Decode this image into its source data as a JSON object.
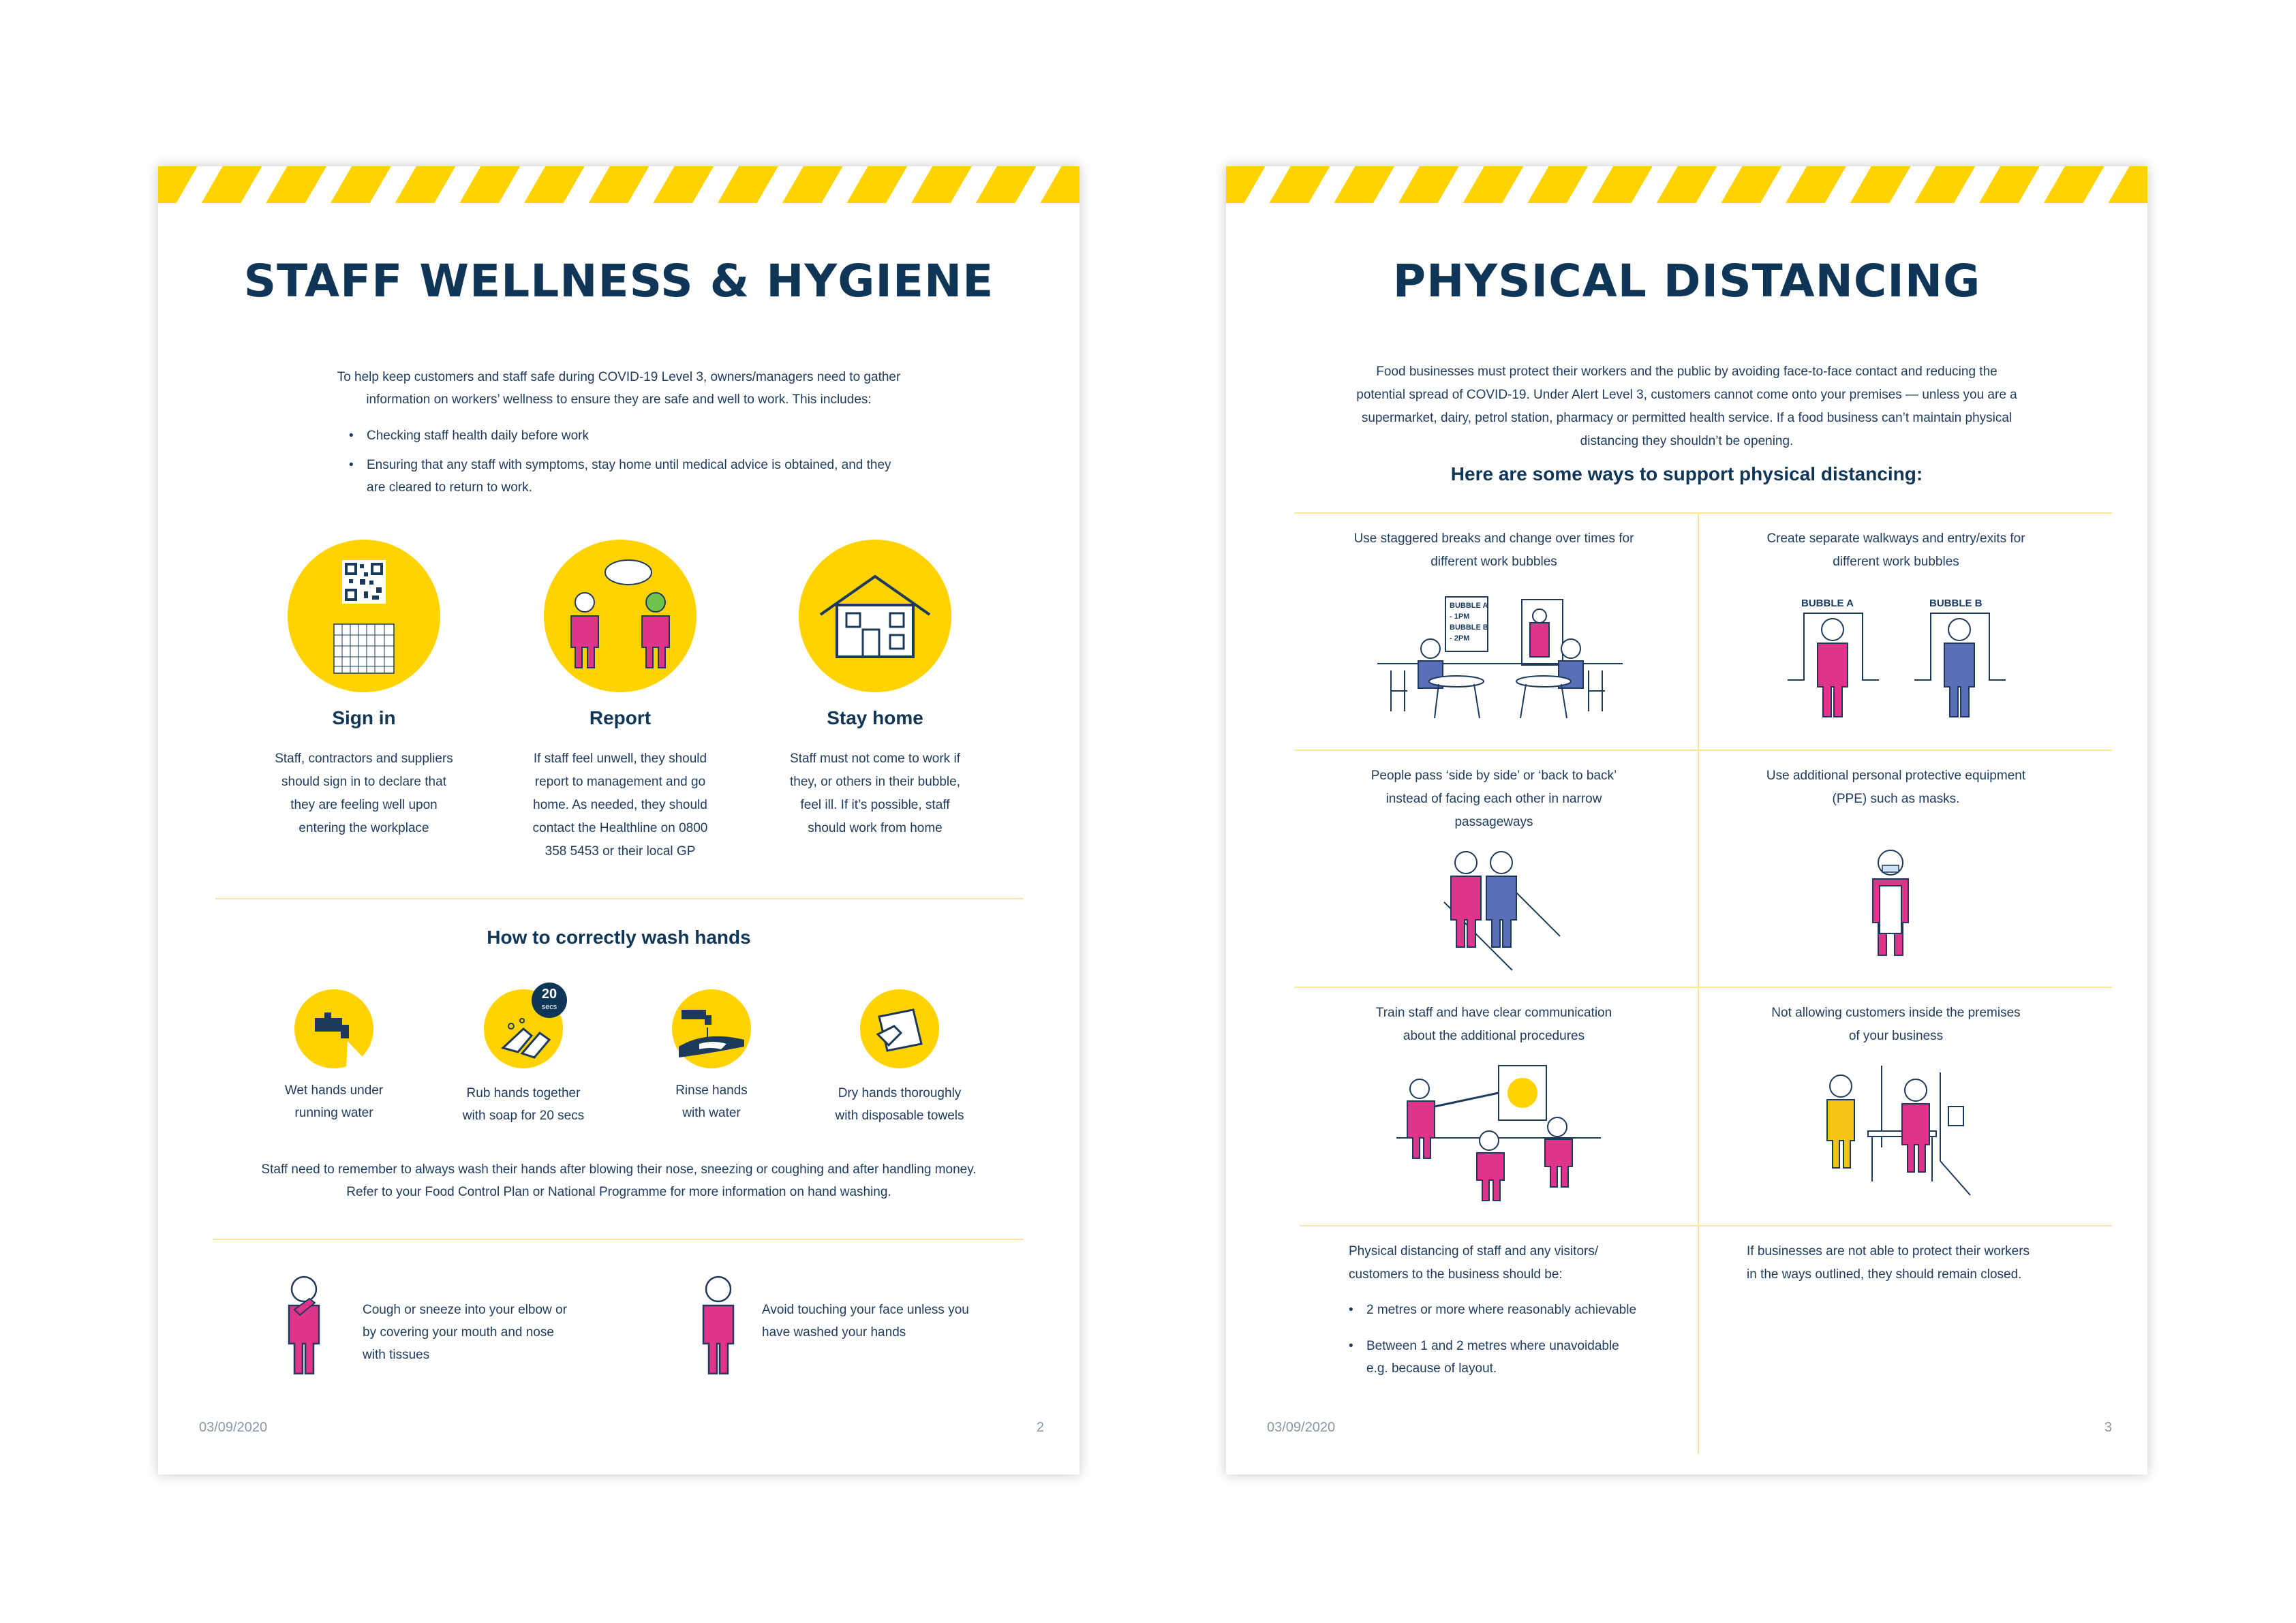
{
  "left_page": {
    "title": "STAFF WELLNESS & HYGIENE",
    "intro_line1": "To help keep customers and staff safe during COVID-19 Level 3, owners/managers need to gather",
    "intro_line2": "information on workers’ wellness to ensure they are safe and well to work. This includes:",
    "bullets": [
      "Checking staff health daily before work",
      "Ensuring that any staff with symptoms, stay home until medical advice is obtained, and they",
      "are cleared to return to work."
    ],
    "steps": [
      {
        "heading": "Sign in",
        "lines": [
          "Staff, contractors and suppliers",
          "should sign in to declare that",
          "they are feeling well upon",
          "entering the workplace"
        ]
      },
      {
        "heading": "Report",
        "lines": [
          "If staff feel unwell, they should",
          "report to management and go",
          "home. As needed, they should",
          "contact the Healthline on 0800",
          "358 5453 or their local GP"
        ]
      },
      {
        "heading": "Stay home",
        "lines": [
          "Staff must not come to work if",
          "they, or others in their bubble,",
          "feel ill. If it’s possible, staff",
          "should work from home"
        ]
      }
    ],
    "wash_heading": "How to correctly wash hands",
    "wash_badge_num": "20",
    "wash_badge_unit": "secs",
    "wash_steps": [
      {
        "line1": "Wet hands under",
        "line2": "running water"
      },
      {
        "line1": "Rub hands together",
        "line2": "with soap for 20 secs"
      },
      {
        "line1": "Rinse hands",
        "line2": "with water"
      },
      {
        "line1": "Dry hands thoroughly",
        "line2": "with disposable towels"
      }
    ],
    "wash_note1": "Staff need to remember to always wash their hands after blowing their nose, sneezing or coughing and after handling money.",
    "wash_note2": "Refer to your Food Control Plan or National Programme for more information on hand washing.",
    "tips": [
      {
        "lines": [
          "Cough or sneeze into your elbow or",
          "by covering your mouth and nose",
          "with tissues"
        ]
      },
      {
        "lines": [
          "Avoid touching your face unless you",
          "have washed your hands"
        ]
      }
    ],
    "date": "03/09/2020",
    "page_number": "2"
  },
  "right_page": {
    "title": "PHYSICAL DISTANCING",
    "intro_lines": [
      "Food businesses must protect their workers and the public by avoiding face-to-face contact and reducing the",
      "potential spread of COVID-19. Under Alert Level 3, customers cannot come onto your premises — unless you are a",
      "supermarket, dairy, petrol station, pharmacy or permitted health service. If a food business can’t maintain physical",
      "distancing they shouldn’t be opening."
    ],
    "subheading": "Here are some ways to support physical distancing:",
    "cells": [
      {
        "lines": [
          "Use staggered breaks and change over times for",
          "different work bubbles"
        ]
      },
      {
        "lines": [
          "Create separate walkways and entry/exits for",
          "different work bubbles"
        ]
      },
      {
        "lines": [
          "People pass ‘side by side’ or ‘back to back’",
          "instead of facing each other in narrow",
          "passageways"
        ]
      },
      {
        "lines": [
          "Use additional personal protective equipment",
          "(PPE) such as masks."
        ]
      },
      {
        "lines": [
          "Train staff and have clear communication",
          "about the additional procedures"
        ]
      },
      {
        "lines": [
          "Not allowing customers inside the premises",
          "of your business"
        ]
      }
    ],
    "sign_lines": [
      "BUBBLE A",
      "- 1PM",
      "BUBBLE B",
      "- 2PM"
    ],
    "bubble_a": "BUBBLE A",
    "bubble_b": "BUBBLE B",
    "bottom_left_lines": [
      "Physical distancing of staff and any visitors/",
      "customers to the business should be:"
    ],
    "bottom_bullets": [
      "2 metres or more where reasonably achievable",
      "Between 1 and 2 metres where unavoidable",
      "e.g. because of layout."
    ],
    "bottom_right_lines": [
      "If businesses are not able to protect their workers",
      "in the ways outlined, they should remain closed."
    ],
    "date": "03/09/2020",
    "page_number": "3"
  },
  "colors": {
    "navy": "#0f3557",
    "yellow": "#ffd200",
    "pink": "#e0338a",
    "blue": "#5b6fb8",
    "rule": "#fbe39a"
  }
}
